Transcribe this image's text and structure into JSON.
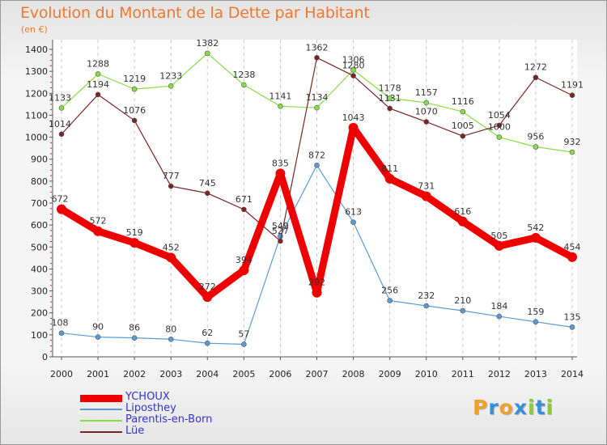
{
  "chart_data": {
    "type": "line",
    "title": "Evolution du Montant de la Dette par Habitant",
    "subtitle": "(en €)",
    "categories": [
      "2000",
      "2001",
      "2002",
      "2003",
      "2004",
      "2005",
      "2006",
      "2007",
      "2008",
      "2009",
      "2010",
      "2011",
      "2012",
      "2013",
      "2014"
    ],
    "y_ticks": [
      "0",
      "100",
      "200",
      "300",
      "400",
      "500",
      "600",
      "700",
      "800",
      "900",
      "1000",
      "1100",
      "1200",
      "1300",
      "1400"
    ],
    "ylim": [
      0,
      1400
    ],
    "grid": "vertical dashed",
    "legend_position": "bottom-left",
    "series": [
      {
        "name": "YCHOUX",
        "color": "#ee0000",
        "values": [
          672,
          572,
          519,
          452,
          272,
          394,
          835,
          292,
          1043,
          811,
          731,
          616,
          505,
          542,
          454
        ]
      },
      {
        "name": "Liposthey",
        "color": "#5b9bd5",
        "values": [
          108,
          90,
          86,
          80,
          62,
          57,
          549,
          872,
          613,
          256,
          232,
          210,
          184,
          159,
          135
        ]
      },
      {
        "name": "Parentis-en-Born",
        "color": "#88dd44",
        "values": [
          1133,
          1288,
          1219,
          1233,
          1382,
          1238,
          1141,
          1134,
          1306,
          1178,
          1157,
          1116,
          1000,
          956,
          932
        ]
      },
      {
        "name": "Lüe",
        "color": "#7a2525",
        "values": [
          1014,
          1194,
          1076,
          777,
          745,
          671,
          527,
          1362,
          1280,
          1131,
          1070,
          1005,
          1054,
          1272,
          1191
        ]
      }
    ]
  },
  "brand": {
    "letters": [
      "P",
      "r",
      "o",
      "x",
      "i",
      "t",
      "i"
    ],
    "colors": [
      "#f0a030",
      "#3a8fd8",
      "#f0a030",
      "#3a8fd8",
      "#8cc83c",
      "#3a8fd8",
      "#8cc83c"
    ]
  }
}
